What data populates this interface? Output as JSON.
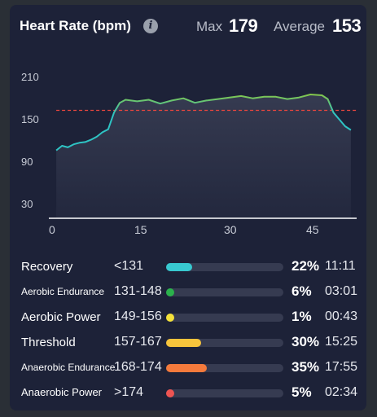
{
  "header": {
    "title": "Heart Rate (bpm)",
    "info_icon": "info-icon",
    "max_label": "Max",
    "max_value": "179",
    "avg_label": "Average",
    "avg_value": "153"
  },
  "chart_data": {
    "type": "area",
    "y_ticks": [
      "210",
      "150",
      "90",
      "30"
    ],
    "x_ticks": [
      "0",
      "15",
      "30",
      "45"
    ],
    "xlim": [
      -1,
      52
    ],
    "ylim": [
      10,
      228
    ],
    "reference_line": 153,
    "reference_line_style": "dashed red",
    "colors": {
      "low": "#2ec4c4",
      "mid": "#f2c744",
      "high": "#f0553f"
    },
    "series": [
      {
        "x": [
          0,
          1,
          2,
          3,
          4,
          5,
          6,
          7,
          8,
          9,
          10,
          11,
          12,
          14,
          16,
          18,
          20,
          22,
          24,
          26,
          28,
          30,
          32,
          34,
          36,
          38,
          40,
          42,
          44,
          46,
          47,
          48,
          49,
          50,
          51
        ],
        "values": [
          100,
          106,
          104,
          108,
          110,
          111,
          114,
          118,
          124,
          128,
          150,
          163,
          167,
          165,
          167,
          162,
          166,
          169,
          163,
          166,
          168,
          170,
          172,
          169,
          171,
          171,
          168,
          170,
          174,
          173,
          168,
          150,
          141,
          132,
          127
        ]
      }
    ]
  },
  "zones": [
    {
      "name": "Recovery",
      "range": "<131",
      "pct": "22%",
      "time": "11:11",
      "fraction": 0.22,
      "color": "#38c9d0",
      "size": "large"
    },
    {
      "name": "Aerobic Endurance",
      "range": "131-148",
      "pct": "6%",
      "time": "03:01",
      "fraction": 0.06,
      "color": "#2bb24c",
      "size": "small"
    },
    {
      "name": "Aerobic Power",
      "range": "149-156",
      "pct": "1%",
      "time": "00:43",
      "fraction": 0.01,
      "color": "#f4e13a",
      "size": "large"
    },
    {
      "name": "Threshold",
      "range": "157-167",
      "pct": "30%",
      "time": "15:25",
      "fraction": 0.3,
      "color": "#f6c43c",
      "size": "large"
    },
    {
      "name": "Anaerobic Endurance",
      "range": "168-174",
      "pct": "35%",
      "time": "17:55",
      "fraction": 0.35,
      "color": "#f47a3c",
      "size": "small"
    },
    {
      "name": "Anaerobic Power",
      "range": ">174",
      "pct": "5%",
      "time": "02:34",
      "fraction": 0.05,
      "color": "#ee5452",
      "size": "large"
    }
  ]
}
